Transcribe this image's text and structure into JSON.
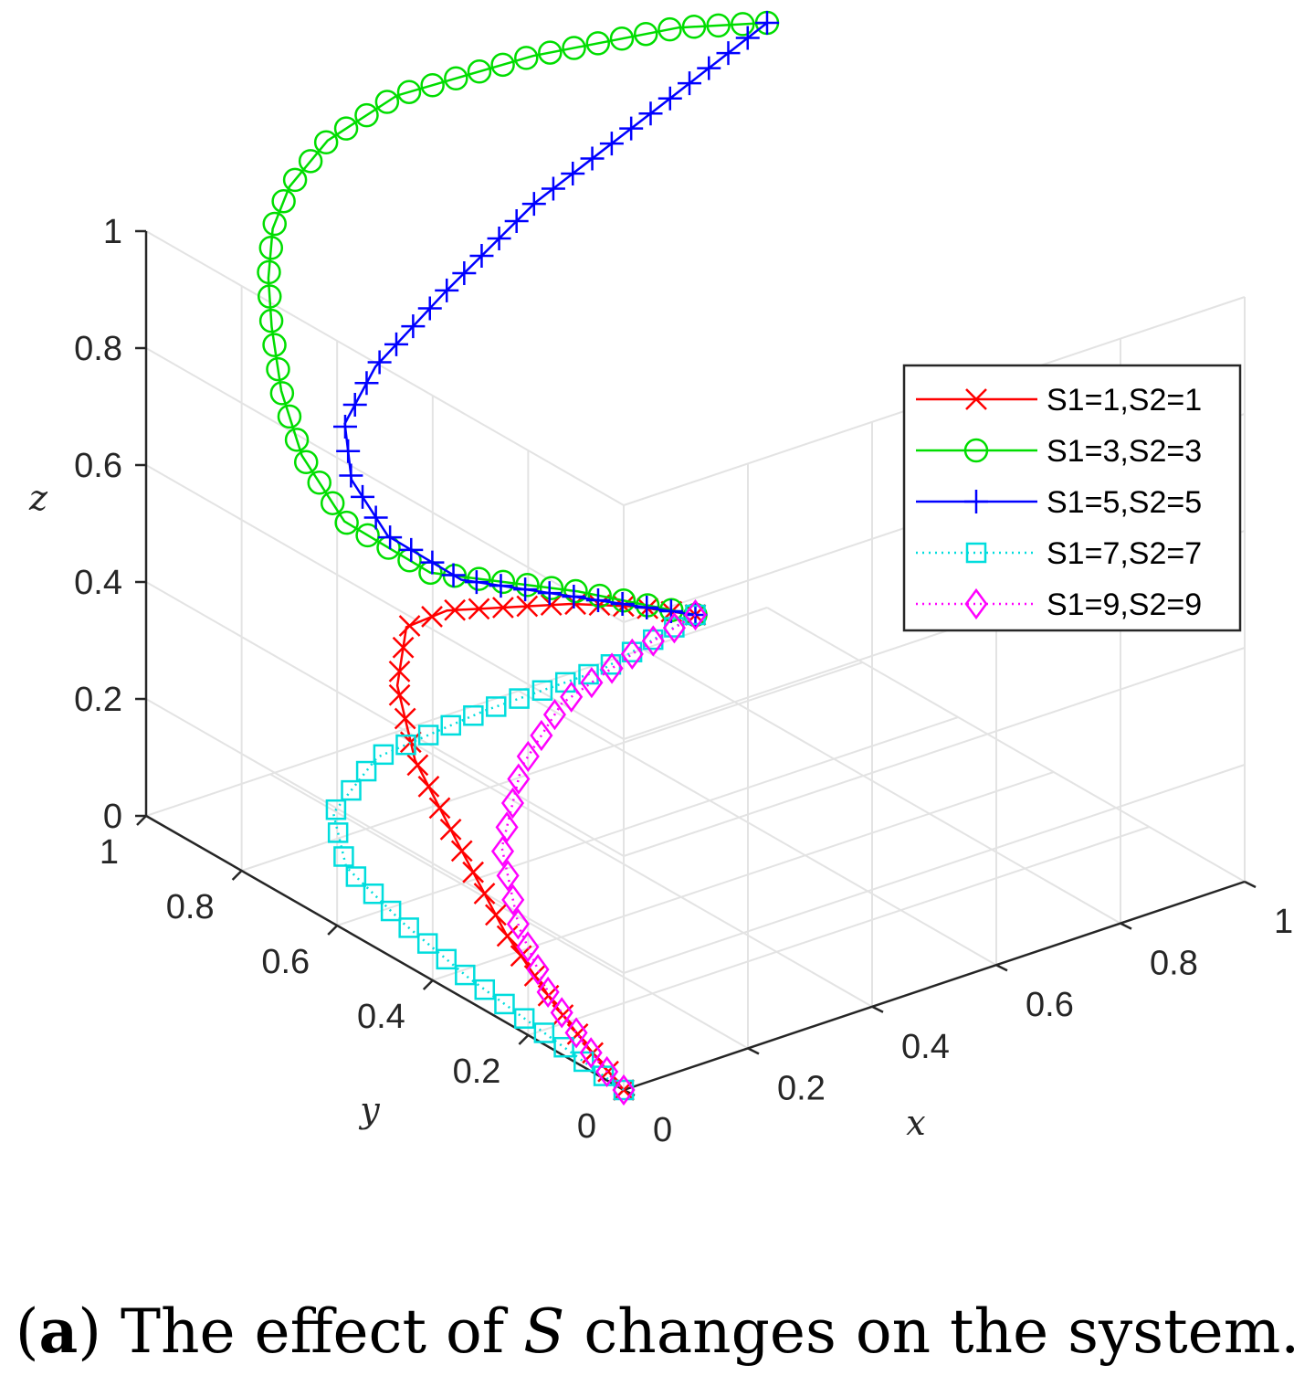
{
  "chart_data": {
    "type": "line3d",
    "xlabel": "x",
    "ylabel": "y",
    "zlabel": "z",
    "xlim": [
      0,
      1
    ],
    "ylim": [
      0,
      1
    ],
    "zlim": [
      0,
      1
    ],
    "grid": true,
    "legend_position": "right",
    "x_ticks": [
      "0",
      "0.2",
      "0.4",
      "0.6",
      "0.8",
      "1"
    ],
    "y_ticks": [
      "0",
      "0.2",
      "0.4",
      "0.6",
      "0.8",
      "1"
    ],
    "z_ticks": [
      "0",
      "0.2",
      "0.4",
      "0.6",
      "0.8",
      "1"
    ],
    "series": [
      {
        "name": "S1=1,S2=1",
        "color": "#ff0000",
        "marker": "x",
        "line": "solid",
        "points": [
          [
            0.5,
            0.5,
            0.4
          ],
          [
            0.4,
            0.5,
            0.45
          ],
          [
            0.3,
            0.5,
            0.49
          ],
          [
            0.2,
            0.5,
            0.52
          ],
          [
            0.1,
            0.5,
            0.55
          ],
          [
            0.05,
            0.52,
            0.53
          ],
          [
            0.02,
            0.5,
            0.45
          ],
          [
            0.01,
            0.45,
            0.35
          ],
          [
            0.005,
            0.35,
            0.25
          ],
          [
            0.002,
            0.25,
            0.15
          ],
          [
            0.001,
            0.15,
            0.08
          ],
          [
            0.0005,
            0.08,
            0.04
          ],
          [
            0.0002,
            0.04,
            0.02
          ],
          [
            0.0001,
            0.02,
            0.01
          ],
          [
            0,
            0,
            0
          ]
        ]
      },
      {
        "name": "S1=3,S2=3",
        "color": "#00dd00",
        "marker": "o",
        "line": "solid",
        "points": [
          [
            0.5,
            0.5,
            0.4
          ],
          [
            0.35,
            0.55,
            0.47
          ],
          [
            0.15,
            0.6,
            0.55
          ],
          [
            0.05,
            0.65,
            0.65
          ],
          [
            0.02,
            0.7,
            0.75
          ],
          [
            0.01,
            0.73,
            0.85
          ],
          [
            0.01,
            0.75,
            0.95
          ],
          [
            0.02,
            0.77,
            1.02
          ],
          [
            0.05,
            0.8,
            1.08
          ],
          [
            0.1,
            0.83,
            1.12
          ],
          [
            0.2,
            0.88,
            1.14
          ],
          [
            0.35,
            0.93,
            1.14
          ],
          [
            0.6,
            0.97,
            1.1
          ],
          [
            0.85,
            0.99,
            1.05
          ],
          [
            1,
            1,
            1
          ]
        ]
      },
      {
        "name": "S1=5,S2=5",
        "color": "#0000ff",
        "marker": "+",
        "line": "solid",
        "points": [
          [
            0.5,
            0.5,
            0.4
          ],
          [
            0.35,
            0.55,
            0.46
          ],
          [
            0.2,
            0.6,
            0.52
          ],
          [
            0.12,
            0.65,
            0.6
          ],
          [
            0.1,
            0.7,
            0.68
          ],
          [
            0.12,
            0.74,
            0.75
          ],
          [
            0.2,
            0.78,
            0.8
          ],
          [
            0.35,
            0.83,
            0.85
          ],
          [
            0.55,
            0.9,
            0.9
          ],
          [
            0.8,
            0.96,
            0.95
          ],
          [
            1,
            1,
            1
          ]
        ]
      },
      {
        "name": "S1=7,S2=7",
        "color": "#00dddd",
        "marker": "s",
        "line": "dotted",
        "points": [
          [
            0.5,
            0.5,
            0.4
          ],
          [
            0.35,
            0.5,
            0.36
          ],
          [
            0.2,
            0.55,
            0.32
          ],
          [
            0.08,
            0.62,
            0.25
          ],
          [
            0.04,
            0.66,
            0.15
          ],
          [
            0.03,
            0.62,
            0.08
          ],
          [
            0.03,
            0.5,
            0.04
          ],
          [
            0.02,
            0.35,
            0.02
          ],
          [
            0.01,
            0.18,
            0.01
          ],
          [
            0.003,
            0.06,
            0.003
          ],
          [
            0,
            0,
            0
          ]
        ]
      },
      {
        "name": "S1=9,S2=9",
        "color": "#ff00ff",
        "marker": "d",
        "line": "dotted",
        "points": [
          [
            0.5,
            0.5,
            0.4
          ],
          [
            0.4,
            0.5,
            0.37
          ],
          [
            0.3,
            0.52,
            0.31
          ],
          [
            0.22,
            0.5,
            0.24
          ],
          [
            0.15,
            0.45,
            0.15
          ],
          [
            0.1,
            0.35,
            0.08
          ],
          [
            0.05,
            0.22,
            0.04
          ],
          [
            0.02,
            0.1,
            0.015
          ],
          [
            0.005,
            0.03,
            0.004
          ],
          [
            0,
            0,
            0
          ]
        ]
      }
    ]
  },
  "caption": {
    "label": "a",
    "text_before": "The effect of",
    "symbol": "S",
    "text_after": "changes on the system."
  }
}
